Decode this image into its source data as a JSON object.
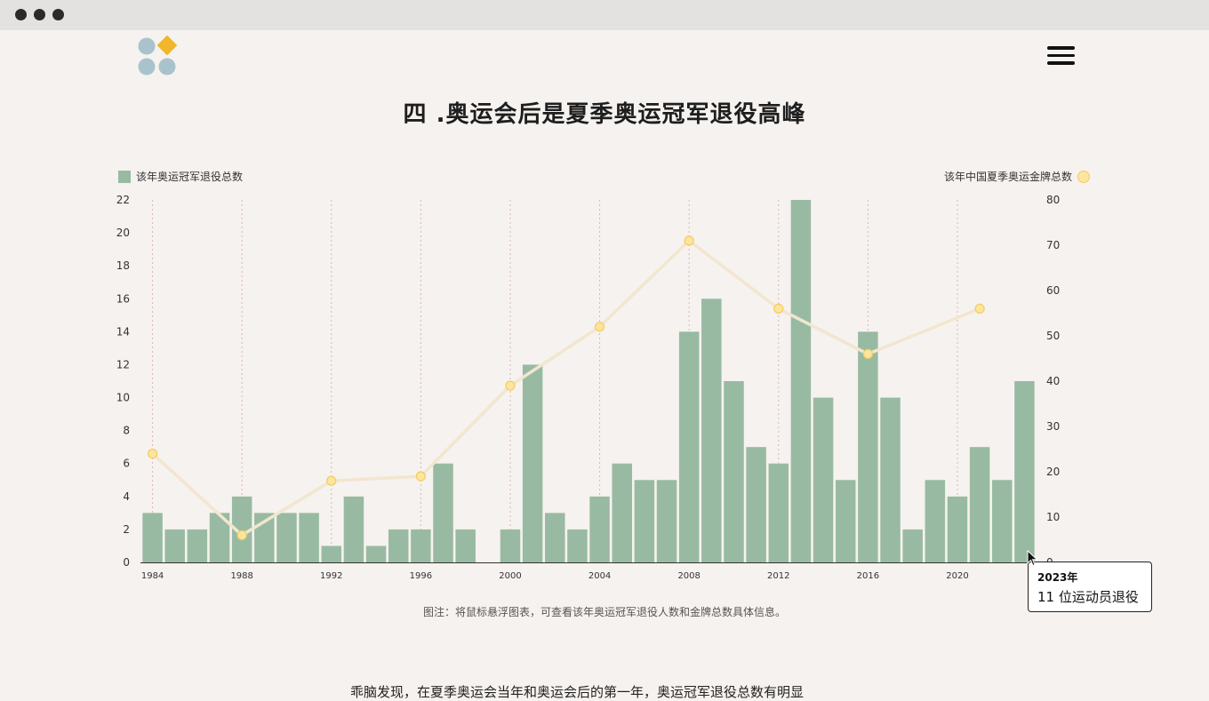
{
  "window": {
    "controls": [
      "close",
      "minimize",
      "maximize"
    ]
  },
  "header": {
    "logo_icon": "logo-icon",
    "menu_icon": "hamburger-menu-icon"
  },
  "page": {
    "title": "四 .奥运会后是夏季奥运冠军退役高峰",
    "note": "图注：将鼠标悬浮图表，可查看该年奥运冠军退役人数和金牌总数具体信息。",
    "body_text": "乖脑发现，在夏季奥运会当年和奥运会后的第一年，奥运冠军退役总数有明显"
  },
  "tooltip": {
    "year": "2023年",
    "value_text": "11 位运动员退役"
  },
  "colors": {
    "bar": "#99baa2",
    "point_fill": "#fde59e",
    "point_stroke": "#f2cc5f",
    "line": "#f2e6cf",
    "background": "#f6f2ef"
  },
  "chart_data": {
    "type": "bar",
    "legend": {
      "left": "该年奥运冠军退役总数",
      "right": "该年中国夏季奥运金牌总数"
    },
    "x_ticks": [
      "1984",
      "1988",
      "1992",
      "1996",
      "2000",
      "2004",
      "2008",
      "2012",
      "2016",
      "2020"
    ],
    "y_left_ticks": [
      "0",
      "2",
      "4",
      "6",
      "8",
      "10",
      "12",
      "14",
      "16",
      "18",
      "20",
      "22"
    ],
    "y_right_ticks": [
      "0",
      "10",
      "20",
      "30",
      "40",
      "50",
      "60",
      "70",
      "80"
    ],
    "ylim_left": [
      0,
      22
    ],
    "ylim_right": [
      0,
      80
    ],
    "categories": [
      1984,
      1985,
      1986,
      1987,
      1988,
      1989,
      1990,
      1991,
      1992,
      1993,
      1994,
      1995,
      1996,
      1997,
      1998,
      1999,
      2000,
      2001,
      2002,
      2003,
      2004,
      2005,
      2006,
      2007,
      2008,
      2009,
      2010,
      2011,
      2012,
      2013,
      2014,
      2015,
      2016,
      2017,
      2018,
      2019,
      2020,
      2021,
      2022,
      2023
    ],
    "series": [
      {
        "name": "该年奥运冠军退役总数",
        "type": "bar",
        "values": [
          3,
          2,
          2,
          3,
          4,
          3,
          3,
          3,
          1,
          4,
          1,
          2,
          2,
          6,
          2,
          0,
          2,
          12,
          3,
          2,
          4,
          6,
          5,
          5,
          14,
          16,
          11,
          7,
          6,
          22,
          10,
          5,
          14,
          10,
          2,
          5,
          4,
          7,
          5,
          11
        ]
      },
      {
        "name": "该年中国夏季奥运金牌总数",
        "type": "line",
        "axis": "right",
        "x": [
          1984,
          1988,
          1992,
          1996,
          2000,
          2004,
          2008,
          2012,
          2016,
          2021
        ],
        "values": [
          24,
          6,
          18,
          19,
          39,
          52,
          71,
          56,
          46,
          56
        ]
      }
    ],
    "grid": "vertical dashed lines at olympic years"
  }
}
